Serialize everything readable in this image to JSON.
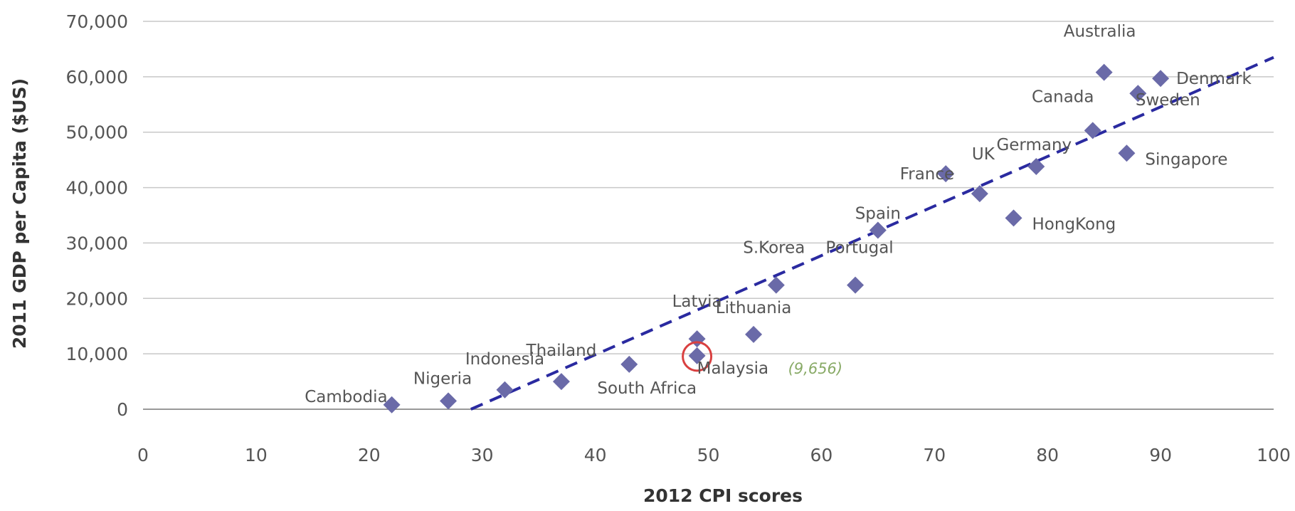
{
  "chart_data": {
    "type": "scatter",
    "xlabel": "2012 CPI scores",
    "ylabel": "2011 GDP per Capita ($US)",
    "xlim": [
      0,
      100
    ],
    "ylim": [
      0,
      70000
    ],
    "xticks": [
      0,
      10,
      20,
      30,
      40,
      50,
      60,
      70,
      80,
      90,
      100
    ],
    "xtick_labels": [
      "0",
      "10",
      "20",
      "30",
      "40",
      "50",
      "60",
      "70",
      "80",
      "90",
      "100"
    ],
    "yticks": [
      0,
      10000,
      20000,
      30000,
      40000,
      50000,
      60000,
      70000
    ],
    "ytick_labels": [
      "0",
      "10,000",
      "20,000",
      "30,000",
      "40,000",
      "50,000",
      "60,000",
      "70,000"
    ],
    "grid": "horizontal",
    "colors": {
      "marker": "#6a6aa8",
      "trendline": "#2a2aa0",
      "highlight": "#d94040",
      "note": "#88aa66"
    },
    "trendline": {
      "style": "dashed",
      "x": [
        29,
        100
      ],
      "y": [
        0,
        63500
      ]
    },
    "points": [
      {
        "label": "Cambodia",
        "x": 22,
        "y": 800
      },
      {
        "label": "Nigeria",
        "x": 27,
        "y": 1500
      },
      {
        "label": "Indonesia",
        "x": 32,
        "y": 3500
      },
      {
        "label": "Thailand",
        "x": 37,
        "y": 5000
      },
      {
        "label": "South Africa",
        "x": 43,
        "y": 8100
      },
      {
        "label": "Latvia",
        "x": 49,
        "y": 12700
      },
      {
        "label": "Malaysia",
        "x": 49,
        "y": 9656,
        "highlight": true,
        "note": "(9,656)"
      },
      {
        "label": "Lithuania",
        "x": 54,
        "y": 13500
      },
      {
        "label": "S.Korea",
        "x": 56,
        "y": 22400
      },
      {
        "label": "Portugal",
        "x": 63,
        "y": 22400
      },
      {
        "label": "Spain",
        "x": 65,
        "y": 32300
      },
      {
        "label": "France",
        "x": 71,
        "y": 42500
      },
      {
        "label": "UK",
        "x": 74,
        "y": 38900
      },
      {
        "label": "HongKong",
        "x": 77,
        "y": 34500
      },
      {
        "label": "Germany",
        "x": 79,
        "y": 43800
      },
      {
        "label": "Canada",
        "x": 84,
        "y": 50300
      },
      {
        "label": "Australia",
        "x": 85,
        "y": 60800
      },
      {
        "label": "Singapore",
        "x": 87,
        "y": 46200
      },
      {
        "label": "Sweden",
        "x": 88,
        "y": 57000
      },
      {
        "label": "Denmark",
        "x": 90,
        "y": 59700
      }
    ]
  }
}
